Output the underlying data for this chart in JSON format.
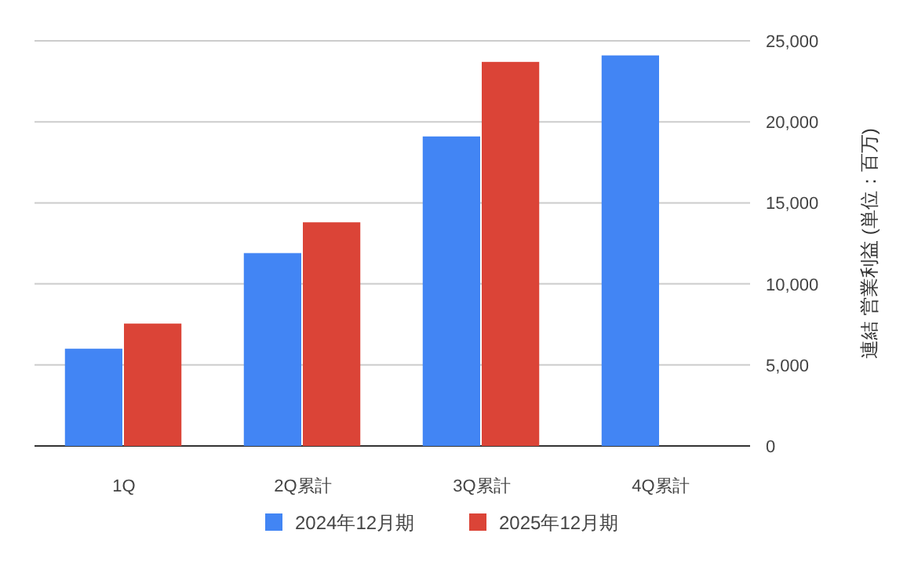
{
  "chart_data": {
    "type": "bar",
    "ylabel": "連結 営業利益 (単位：百万)",
    "categories": [
      "1Q",
      "2Q累計",
      "3Q累計",
      "4Q累計"
    ],
    "series": [
      {
        "name": "2024年12月期",
        "color": "#4285f4",
        "values": [
          6000,
          11900,
          19100,
          24100
        ]
      },
      {
        "name": "2025年12月期",
        "color": "#db4437",
        "values": [
          7550,
          13800,
          23700,
          null
        ]
      }
    ],
    "ylim": [
      0,
      25000
    ],
    "yticks": [
      {
        "value": 0,
        "label": "0"
      },
      {
        "value": 5000,
        "label": "5,000"
      },
      {
        "value": 10000,
        "label": "10,000"
      },
      {
        "value": 15000,
        "label": "15,000"
      },
      {
        "value": 20000,
        "label": "20,000"
      },
      {
        "value": 25000,
        "label": "25,000"
      }
    ],
    "grid": "y",
    "legend": "bottom"
  }
}
